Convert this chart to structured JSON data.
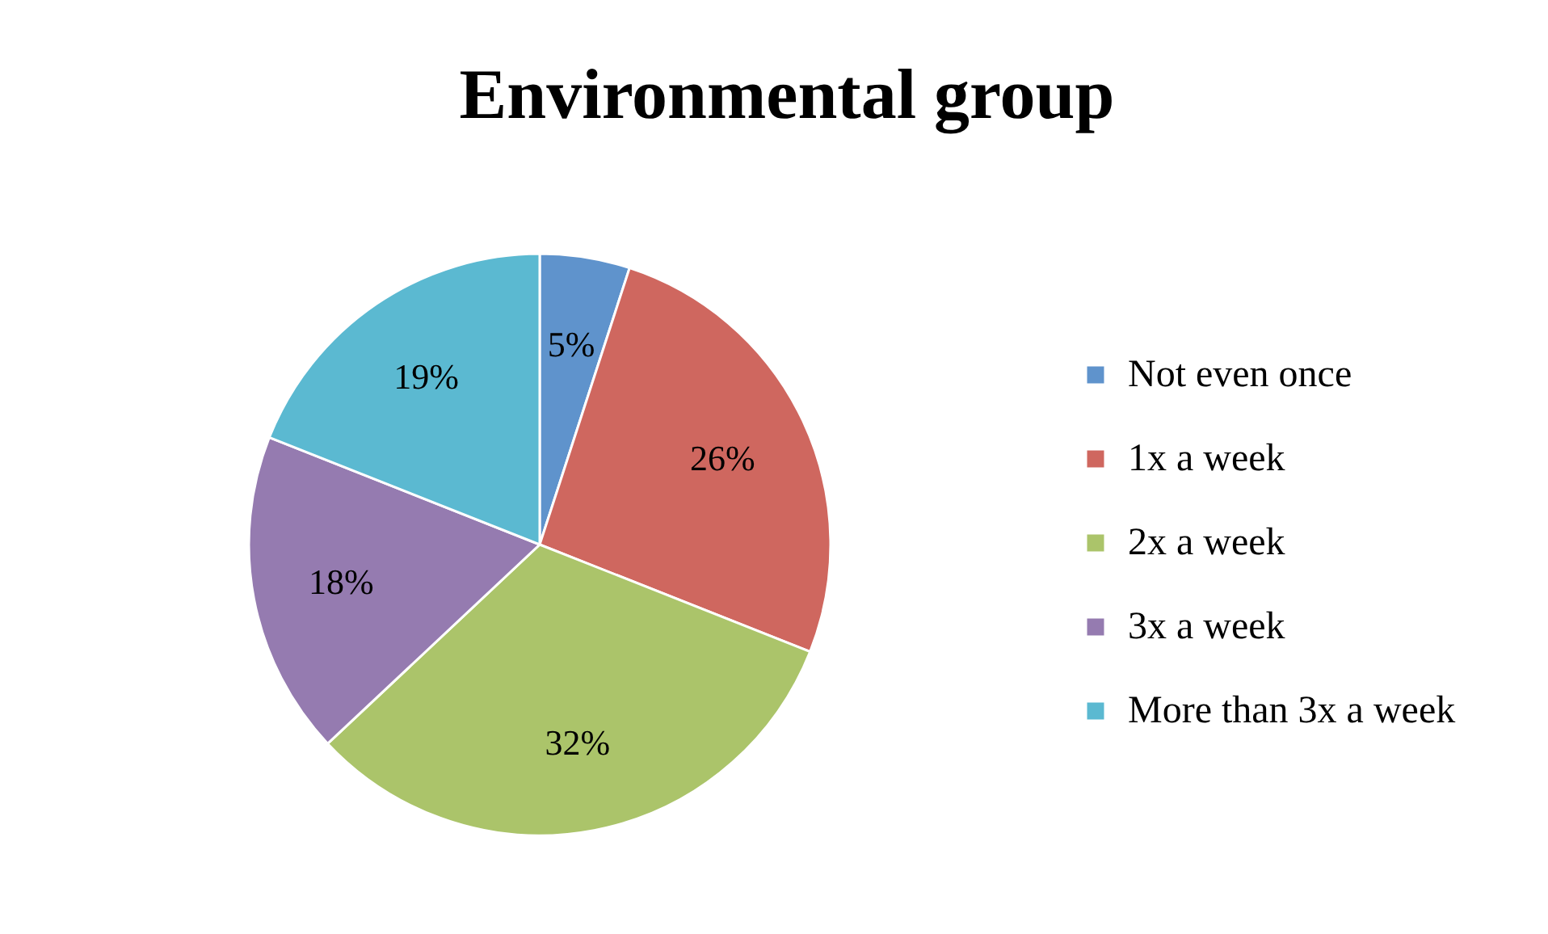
{
  "chart_data": {
    "type": "pie",
    "title": "Environmental group",
    "categories": [
      "Not even once",
      "1x a week",
      "2x a week",
      "3x a week",
      "More than 3x a week"
    ],
    "values": [
      5,
      26,
      32,
      18,
      19
    ],
    "colors": [
      "#5f93cc",
      "#cf675f",
      "#abc46a",
      "#957bb0",
      "#5bb9d1"
    ],
    "value_labels": [
      "5%",
      "26%",
      "32%",
      "18%",
      "19%"
    ],
    "legend": "right"
  }
}
